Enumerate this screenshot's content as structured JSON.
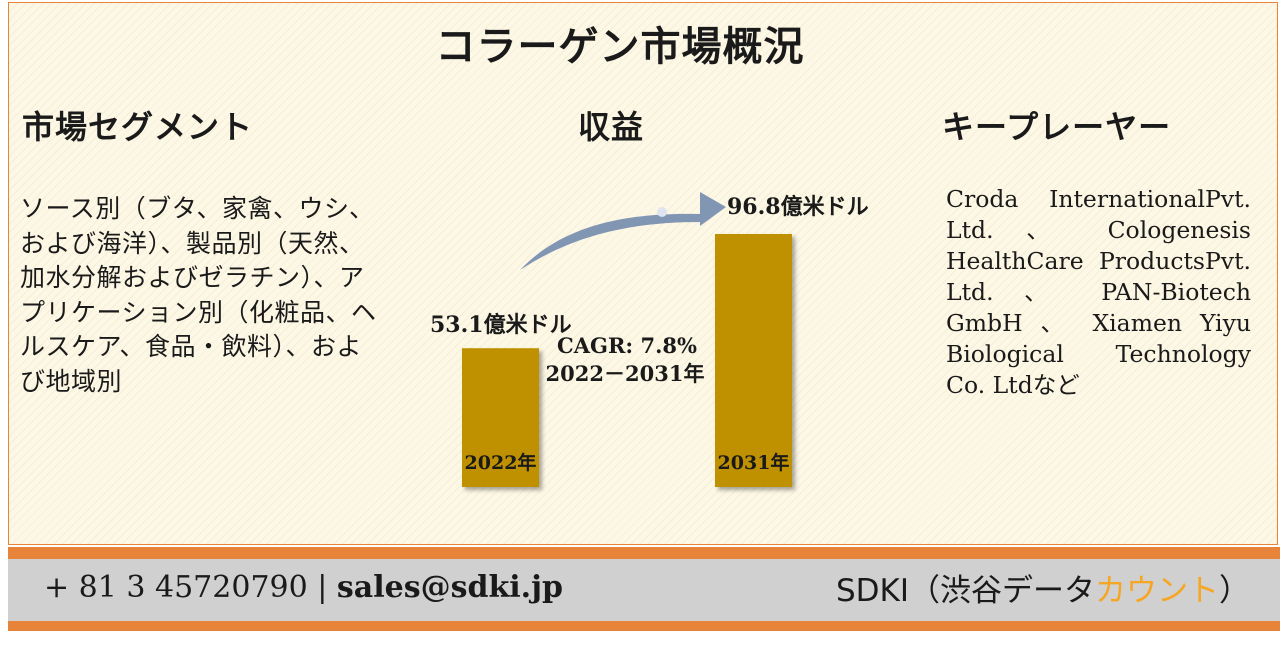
{
  "title": "コラーゲン市場概況",
  "segments": {
    "heading": "市場セグメント",
    "text": "ソース別（ブタ、家禽、ウシ、および海洋）、製品別（天然、加水分解およびゼラチン）、アプリケーション別（化粧品、ヘルスケア、食品・飲料）、および地域別"
  },
  "revenue": {
    "heading": "収益"
  },
  "key_players": {
    "heading": "キープレーヤー",
    "text": "Croda InternationalPvt. Ltd. 、 Cologenesis HealthCare ProductsPvt. Ltd. 、 PAN-Biotech GmbH 、 Xiamen Yiyu Biological Technology Co. Ltdなど"
  },
  "chart_data": {
    "type": "bar",
    "categories": [
      "2022年",
      "2031年"
    ],
    "values": [
      53.1,
      96.8
    ],
    "value_labels": [
      "53.1億米ドル",
      "96.8億米ドル"
    ],
    "unit": "億米ドル",
    "cagr_label": "CAGR: 7.8%",
    "cagr_period": "2022－2031年",
    "bar_color": "#bf9000",
    "arrow_color": "#8196b3"
  },
  "footer": {
    "phone": "+ 81 3 45720790",
    "separator": "|",
    "email": "sales@sdki.jp",
    "brand_main": "SDKI（渋谷データ",
    "brand_accent": "カウント",
    "brand_end": "）",
    "accent_color": "#f5a623"
  }
}
